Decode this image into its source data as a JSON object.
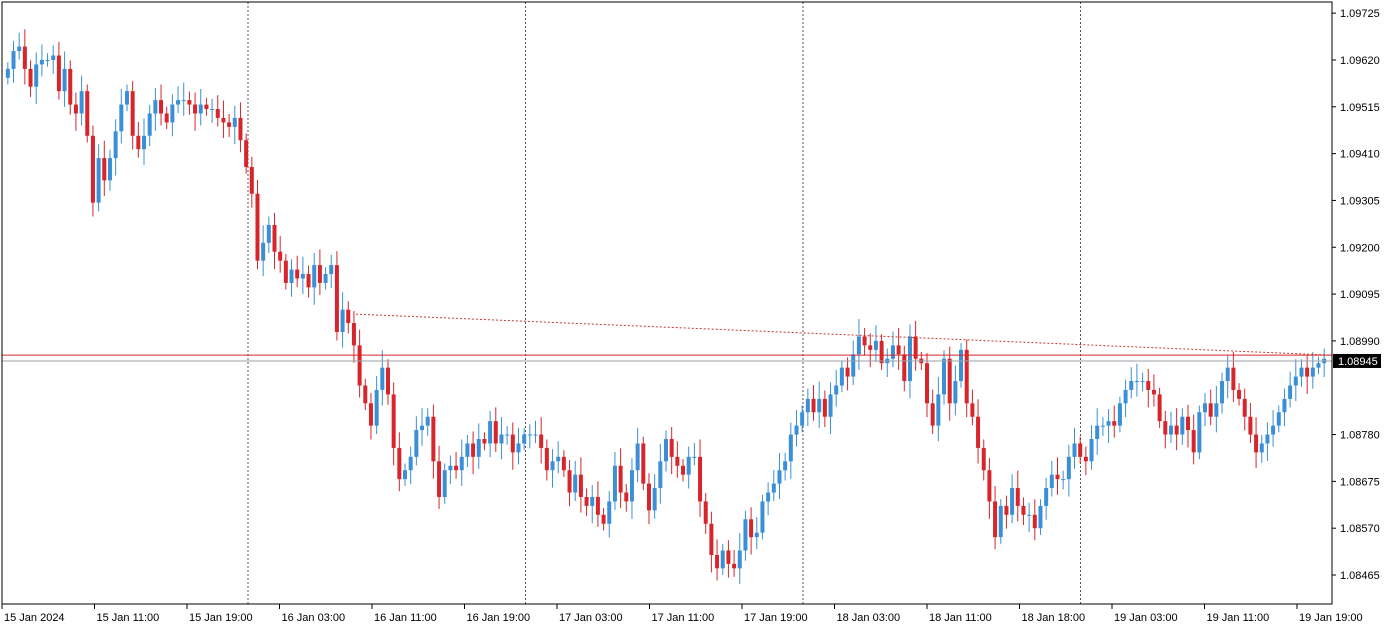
{
  "chart_data": {
    "type": "candlestick",
    "title": "",
    "ylim": [
      1.084,
      1.0975
    ],
    "y_ticks": [
      1.09725,
      1.0962,
      1.09515,
      1.0941,
      1.09305,
      1.092,
      1.09095,
      1.0899,
      1.0878,
      1.08675,
      1.0857,
      1.08465
    ],
    "y_tick_labels": [
      "1.09725",
      "1.09620",
      "1.09515",
      "1.09410",
      "1.09305",
      "1.09200",
      "1.09095",
      "1.08990",
      "1.08780",
      "1.08675",
      "1.08570",
      "1.08465"
    ],
    "x_labels": [
      "15 Jan 2024",
      "15 Jan 11:00",
      "15 Jan 19:00",
      "16 Jan 03:00",
      "16 Jan 11:00",
      "16 Jan 19:00",
      "17 Jan 03:00",
      "17 Jan 11:00",
      "17 Jan 19:00",
      "18 Jan 03:00",
      "18 Jan 11:00",
      "18 Jan 18:00",
      "19 Jan 03:00",
      "19 Jan 11:00",
      "19 Jan 19:00"
    ],
    "day_separators_after_label": [
      "15 Jan 19:00",
      "16 Jan 19:00",
      "17 Jan 19:00",
      "18 Jan 18:00"
    ],
    "current_price": 1.08945,
    "current_price_label": "1.08945",
    "ask_price": 1.08958,
    "trend_line": {
      "from_price": 1.0905,
      "to_price": 1.08958
    },
    "close_prices": [
      1.096,
      1.0964,
      1.0965,
      1.096,
      1.0956,
      1.0961,
      1.0962,
      1.0962,
      1.0963,
      1.0955,
      1.096,
      1.0952,
      1.095,
      1.0955,
      1.0945,
      1.093,
      1.094,
      1.0935,
      1.094,
      1.0946,
      1.0952,
      1.0955,
      1.0945,
      1.0942,
      1.0945,
      1.095,
      1.0953,
      1.095,
      1.0948,
      1.0952,
      1.0953,
      1.0953,
      1.0952,
      1.095,
      1.0952,
      1.0951,
      1.0951,
      1.0949,
      1.0948,
      1.0947,
      1.0949,
      1.0944,
      1.0938,
      1.0932,
      1.0917,
      1.0921,
      1.0925,
      1.0919,
      1.0917,
      1.0912,
      1.0915,
      1.0913,
      1.0914,
      1.0911,
      1.0916,
      1.0912,
      1.0914,
      1.0916,
      1.0901,
      1.0906,
      1.0903,
      1.0898,
      1.0889,
      1.0885,
      1.088,
      1.0888,
      1.0893,
      1.0887,
      1.0875,
      1.0868,
      1.087,
      1.0873,
      1.0879,
      1.088,
      1.0882,
      1.0872,
      1.0864,
      1.087,
      1.0871,
      1.087,
      1.0873,
      1.0876,
      1.0873,
      1.0877,
      1.0876,
      1.0881,
      1.0876,
      1.0878,
      1.0878,
      1.0874,
      1.0876,
      1.0878,
      1.0878,
      1.0878,
      1.0875,
      1.087,
      1.0872,
      1.0873,
      1.087,
      1.0865,
      1.0869,
      1.0864,
      1.0862,
      1.0864,
      1.086,
      1.0858,
      1.0863,
      1.0871,
      1.0865,
      1.0863,
      1.087,
      1.0876,
      1.0867,
      1.0861,
      1.0866,
      1.0872,
      1.0877,
      1.0873,
      1.0871,
      1.0869,
      1.0873,
      1.0873,
      1.0863,
      1.0858,
      1.0851,
      1.0848,
      1.0852,
      1.0849,
      1.0848,
      1.0852,
      1.0859,
      1.0855,
      1.0856,
      1.0863,
      1.0865,
      1.0867,
      1.087,
      1.0872,
      1.0878,
      1.088,
      1.0883,
      1.0886,
      1.0883,
      1.0886,
      1.0882,
      1.0887,
      1.0889,
      1.0893,
      1.0891,
      1.0896,
      1.09,
      1.0898,
      1.0897,
      1.0899,
      1.0894,
      1.0895,
      1.0898,
      1.0896,
      1.089,
      1.09,
      1.0895,
      1.0894,
      1.0885,
      1.088,
      1.0887,
      1.0895,
      1.0885,
      1.089,
      1.0897,
      1.0885,
      1.0882,
      1.0875,
      1.087,
      1.0863,
      1.0855,
      1.0862,
      1.086,
      1.0866,
      1.0862,
      1.086,
      1.086,
      1.0857,
      1.0862,
      1.0866,
      1.0869,
      1.0868,
      1.0868,
      1.0873,
      1.0876,
      1.0873,
      1.0872,
      1.0877,
      1.088,
      1.088,
      1.0881,
      1.088,
      1.0885,
      1.0888,
      1.089,
      1.089,
      1.089,
      1.0888,
      1.0887,
      1.0881,
      1.0878,
      1.088,
      1.0878,
      1.0882,
      1.0879,
      1.0874,
      1.0883,
      1.0885,
      1.0882,
      1.0885,
      1.089,
      1.0893,
      1.0888,
      1.0886,
      1.0882,
      1.0878,
      1.0874,
      1.0876,
      1.0878,
      1.088,
      1.0883,
      1.0886,
      1.0889,
      1.0891,
      1.0893,
      1.0891,
      1.0893,
      1.0894,
      1.0895
    ]
  }
}
